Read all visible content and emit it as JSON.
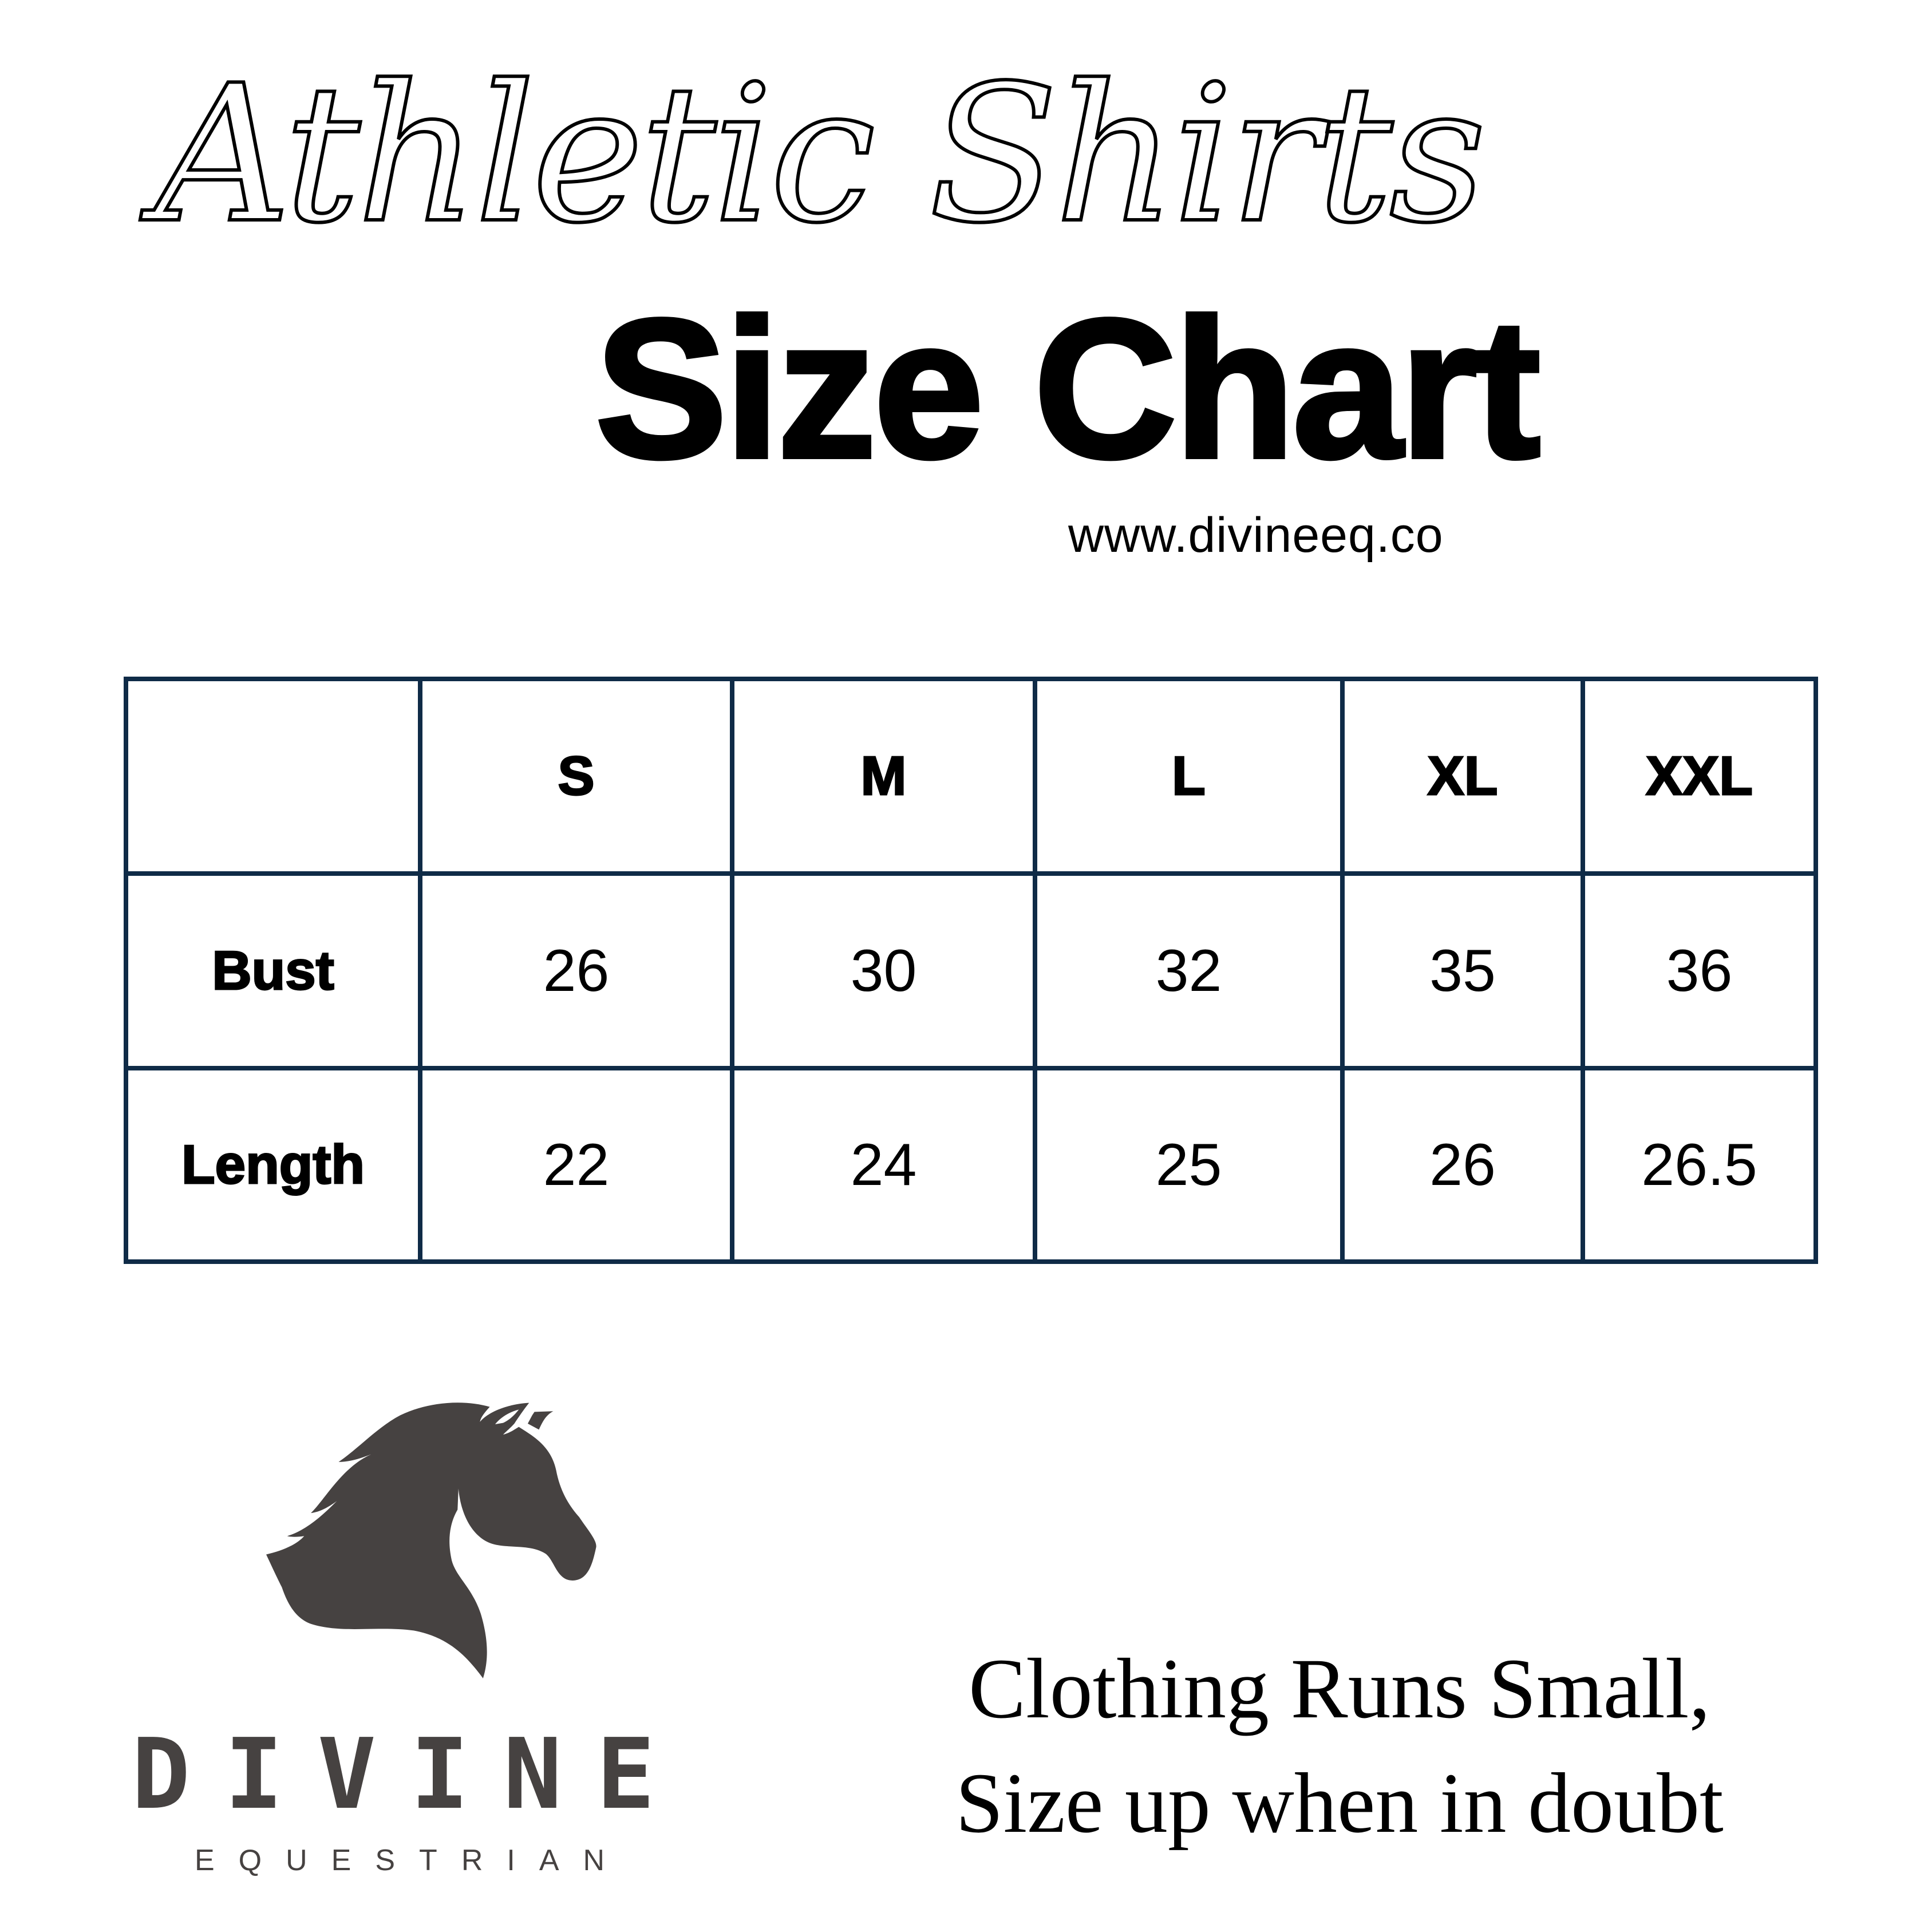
{
  "header": {
    "script_title": "Athletic Shirts",
    "title": "Size Chart",
    "website": "www.divineeq.co"
  },
  "table": {
    "columns": [
      "",
      "S",
      "M",
      "L",
      "XL",
      "XXL"
    ],
    "rows": [
      {
        "label": "Bust",
        "values": [
          "26",
          "30",
          "32",
          "35",
          "36"
        ]
      },
      {
        "label": "Length",
        "values": [
          "22",
          "24",
          "25",
          "26",
          "26.5"
        ]
      }
    ],
    "border_color": "#0f2b47"
  },
  "logo": {
    "icon": "horse-head-icon",
    "name": "DIVINE",
    "subtitle": "EQUESTRIAN",
    "color": "#464241"
  },
  "note": {
    "line1": "Clothing Runs Small,",
    "line2": "Size up when in doubt"
  }
}
